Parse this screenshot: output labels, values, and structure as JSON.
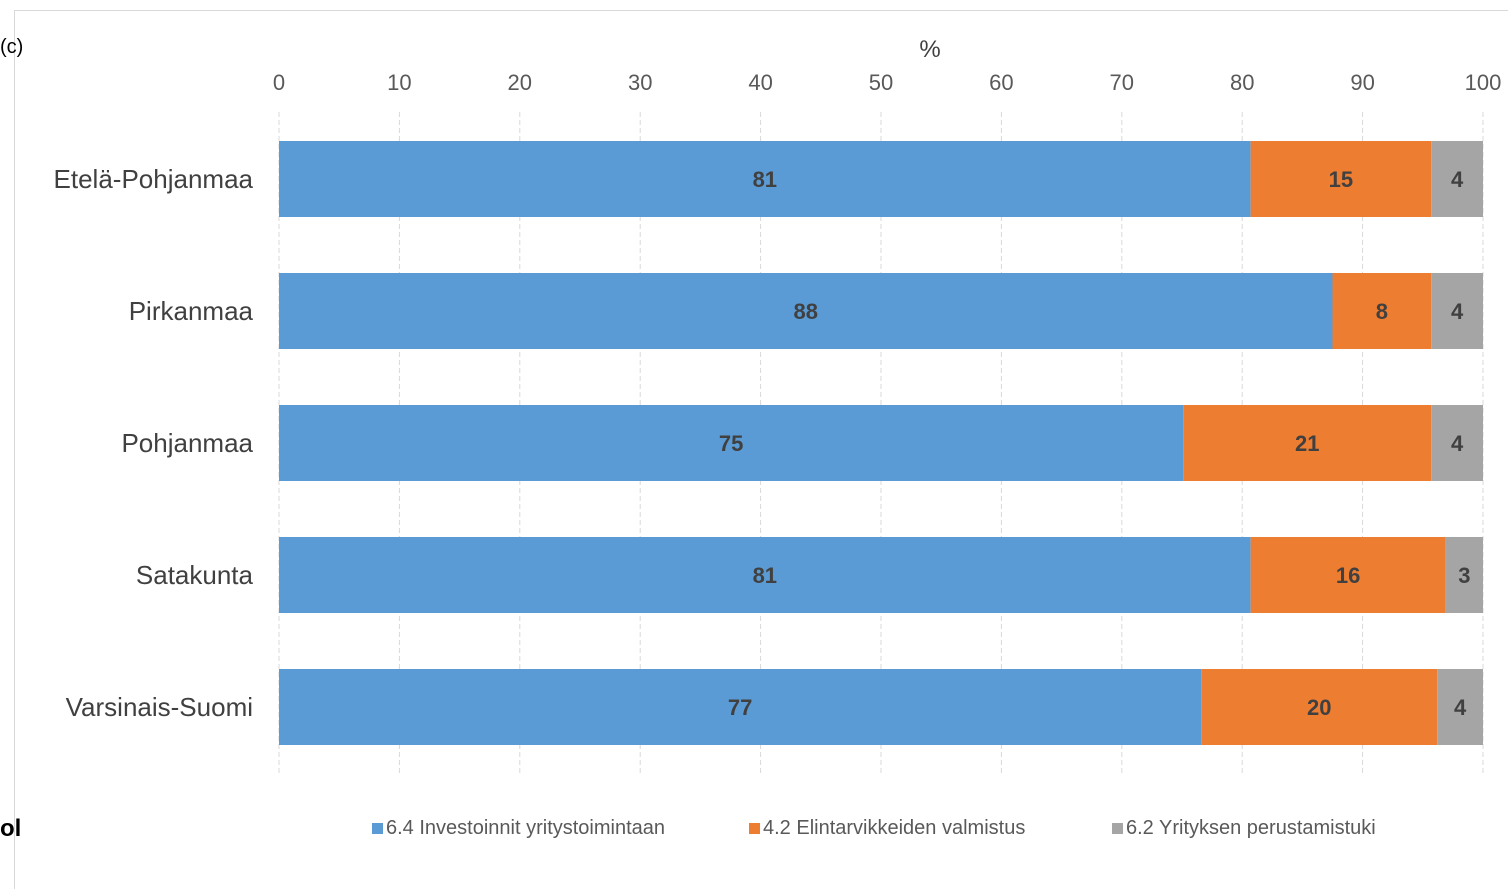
{
  "edge_fragments": {
    "left_top": "(c)",
    "left_bottom": "ol"
  },
  "chart_data": {
    "type": "bar",
    "orientation": "horizontal",
    "stacked": true,
    "xlabel": "%",
    "xlim": [
      0,
      100
    ],
    "xticks": [
      "0",
      "10",
      "20",
      "30",
      "40",
      "50",
      "60",
      "70",
      "80",
      "90",
      "100"
    ],
    "grid": true,
    "legend_position": "bottom",
    "categories": [
      "Etelä-Pohjanmaa",
      "Pirkanmaa",
      "Pohjanmaa",
      "Satakunta",
      "Varsinais-Suomi"
    ],
    "series": [
      {
        "name": "6.4 Investoinnit yritystoimintaan",
        "color": "#5b9bd5",
        "values": [
          81,
          88,
          75,
          81,
          77
        ],
        "display_values": [
          80.7,
          87.5,
          75.1,
          80.7,
          76.6
        ]
      },
      {
        "name": "4.2 Elintarvikkeiden valmistus",
        "color": "#ed7d31",
        "values": [
          15,
          8,
          21,
          16,
          20
        ],
        "display_values": [
          15.0,
          8.2,
          20.6,
          16.2,
          19.6
        ]
      },
      {
        "name": "6.2 Yrityksen perustamistuki",
        "color": "#a5a5a5",
        "values": [
          4,
          4,
          4,
          3,
          4
        ],
        "display_values": [
          4.3,
          4.3,
          4.3,
          3.1,
          3.8
        ]
      }
    ]
  }
}
